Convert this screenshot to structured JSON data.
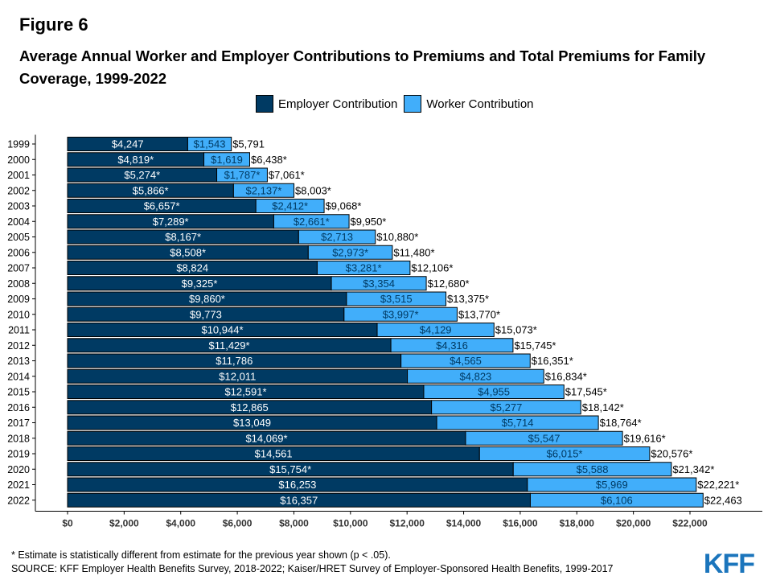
{
  "figure_label": "Figure 6",
  "title": "Average Annual Worker and Employer Contributions to Premiums and Total Premiums for Family Coverage, 1999-2022",
  "footnote": "* Estimate is statistically different from estimate for the previous year shown (p < .05).",
  "source": "SOURCE: KFF Employer Health Benefits Survey, 2018-2022; Kaiser/HRET Survey of Employer-Sponsored Health Benefits, 1999-2017",
  "logo_text": "KFF",
  "colors": {
    "employer": "#003a63",
    "worker": "#41aefa",
    "logo": "#1b75bc"
  },
  "chart_data": {
    "type": "bar",
    "orientation": "horizontal",
    "stacked": true,
    "legend_position": "top",
    "grid": false,
    "xlim": [
      0,
      22500
    ],
    "x_ticks": [
      0,
      2000,
      4000,
      6000,
      8000,
      10000,
      12000,
      14000,
      16000,
      18000,
      20000,
      22000
    ],
    "x_tick_labels": [
      "$0",
      "$2,000",
      "$4,000",
      "$6,000",
      "$8,000",
      "$10,000",
      "$12,000",
      "$14,000",
      "$16,000",
      "$18,000",
      "$20,000",
      "$22,000"
    ],
    "categories": [
      "1999",
      "2000",
      "2001",
      "2002",
      "2003",
      "2004",
      "2005",
      "2006",
      "2007",
      "2008",
      "2009",
      "2010",
      "2011",
      "2012",
      "2013",
      "2014",
      "2015",
      "2016",
      "2017",
      "2018",
      "2019",
      "2020",
      "2021",
      "2022"
    ],
    "series": [
      {
        "name": "Employer Contribution",
        "values": [
          4247,
          4819,
          5274,
          5866,
          6657,
          7289,
          8167,
          8508,
          8824,
          9325,
          9860,
          9773,
          10944,
          11429,
          11786,
          12011,
          12591,
          12865,
          13049,
          14069,
          14561,
          15754,
          16253,
          16357
        ],
        "labels": [
          "$4,247",
          "$4,819*",
          "$5,274*",
          "$5,866*",
          "$6,657*",
          "$7,289*",
          "$8,167*",
          "$8,508*",
          "$8,824",
          "$9,325*",
          "$9,860*",
          "$9,773",
          "$10,944*",
          "$11,429*",
          "$11,786",
          "$12,011",
          "$12,591*",
          "$12,865",
          "$13,049",
          "$14,069*",
          "$14,561",
          "$15,754*",
          "$16,253",
          "$16,357"
        ]
      },
      {
        "name": "Worker Contribution",
        "values": [
          1543,
          1619,
          1787,
          2137,
          2412,
          2661,
          2713,
          2973,
          3281,
          3354,
          3515,
          3997,
          4129,
          4316,
          4565,
          4823,
          4955,
          5277,
          5714,
          5547,
          6015,
          5588,
          5969,
          6106
        ],
        "labels": [
          "$1,543",
          "$1,619",
          "$1,787*",
          "$2,137*",
          "$2,412*",
          "$2,661*",
          "$2,713",
          "$2,973*",
          "$3,281*",
          "$3,354",
          "$3,515",
          "$3,997*",
          "$4,129",
          "$4,316",
          "$4,565",
          "$4,823",
          "$4,955",
          "$5,277",
          "$5,714",
          "$5,547",
          "$6,015*",
          "$5,588",
          "$5,969",
          "$6,106"
        ]
      }
    ],
    "totals": [
      5791,
      6438,
      7061,
      8003,
      9068,
      9950,
      10880,
      11480,
      12106,
      12680,
      13375,
      13770,
      15073,
      15745,
      16351,
      16834,
      17545,
      18142,
      18764,
      19616,
      20576,
      21342,
      22221,
      22463
    ],
    "total_labels": [
      "$5,791",
      "$6,438*",
      "$7,061*",
      "$8,003*",
      "$9,068*",
      "$9,950*",
      "$10,880*",
      "$11,480*",
      "$12,106*",
      "$12,680*",
      "$13,375*",
      "$13,770*",
      "$15,073*",
      "$15,745*",
      "$16,351*",
      "$16,834*",
      "$17,545*",
      "$18,142*",
      "$18,764*",
      "$19,616*",
      "$20,576*",
      "$21,342*",
      "$22,221*",
      "$22,463"
    ]
  }
}
